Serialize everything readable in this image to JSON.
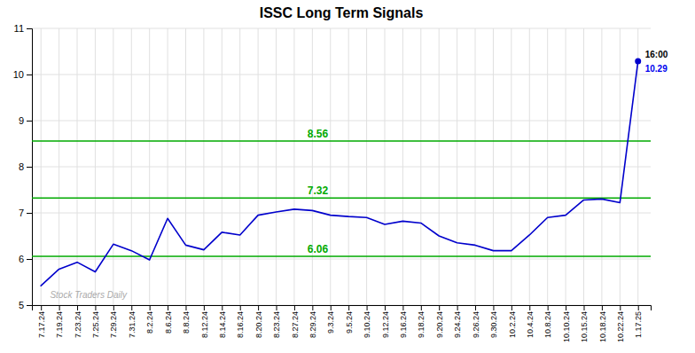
{
  "chart_data": {
    "type": "line",
    "title": "ISSC Long Term Signals",
    "categories": [
      "7.17.24",
      "7.19.24",
      "7.23.24",
      "7.25.24",
      "7.29.24",
      "7.31.24",
      "8.2.24",
      "8.6.24",
      "8.8.24",
      "8.12.24",
      "8.14.24",
      "8.16.24",
      "8.20.24",
      "8.23.24",
      "8.27.24",
      "8.29.24",
      "9.3.24",
      "9.5.24",
      "9.10.24",
      "9.12.24",
      "9.16.24",
      "9.18.24",
      "9.20.24",
      "9.24.24",
      "9.26.24",
      "9.30.24",
      "10.2.24",
      "10.4.24",
      "10.8.24",
      "10.10.24",
      "10.15.24",
      "10.18.24",
      "10.22.24",
      "1.17.25"
    ],
    "values": [
      5.42,
      5.78,
      5.93,
      5.72,
      6.32,
      6.18,
      5.98,
      6.88,
      6.3,
      6.2,
      6.58,
      6.52,
      6.95,
      7.02,
      7.08,
      7.05,
      6.95,
      6.92,
      6.9,
      6.75,
      6.82,
      6.78,
      6.5,
      6.35,
      6.3,
      6.18,
      6.18,
      6.52,
      6.9,
      6.95,
      7.28,
      7.3,
      7.22,
      10.29
    ],
    "color": "#0000cc",
    "ylim": [
      5,
      11
    ],
    "yticks": [
      5,
      6,
      7,
      8,
      9,
      10,
      11
    ],
    "grid": true,
    "reference_lines": [
      {
        "value": 8.56,
        "label": "8.56",
        "color": "#00aa00"
      },
      {
        "value": 7.32,
        "label": "7.32",
        "color": "#00aa00"
      },
      {
        "value": 6.06,
        "label": "6.06",
        "color": "#00aa00"
      }
    ],
    "annotations": [
      {
        "text": "16:00"
      },
      {
        "text": "10.29",
        "color": "#0000ee"
      },
      {
        "text": "Stock Traders Daily",
        "color": "#aaaaaa"
      }
    ]
  }
}
